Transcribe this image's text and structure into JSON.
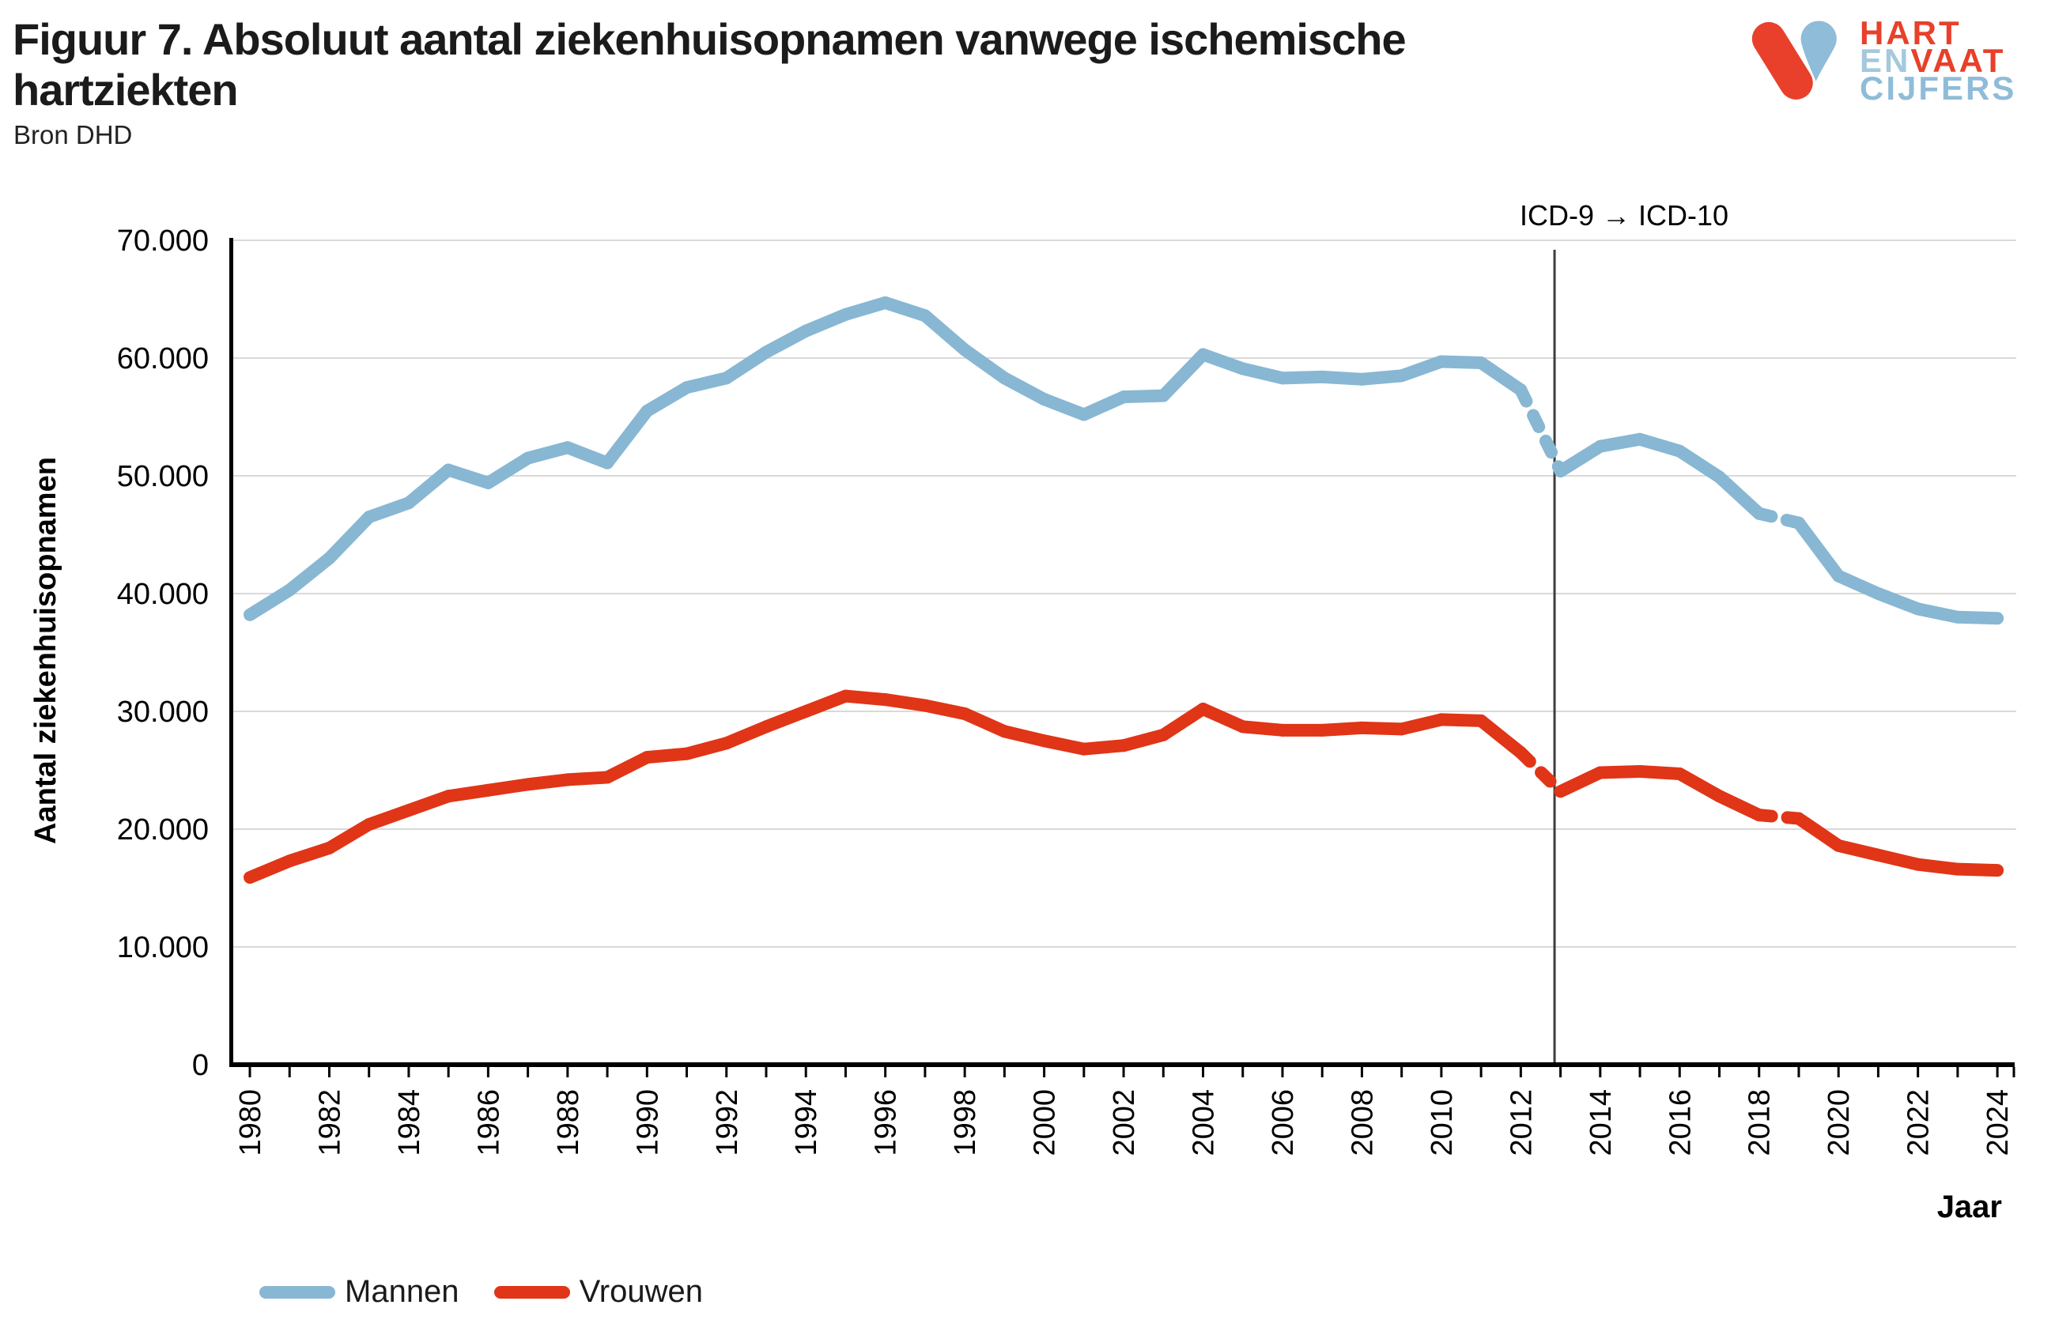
{
  "header": {
    "title": "Figuur 7. Absoluut aantal ziekenhuisopnamen vanwege ischemische hartziekten",
    "source": "Bron DHD"
  },
  "logo": {
    "line1": "HART",
    "line2a": "EN",
    "line2b": "VAAT",
    "line3": "CIJFERS",
    "red": "#E8402A",
    "blue": "#8FBCD8"
  },
  "chart_data": {
    "type": "line",
    "title": "Figuur 7. Absoluut aantal ziekenhuisopnamen vanwege ischemische hartziekten",
    "source": "Bron DHD",
    "xlabel": "Jaar",
    "ylabel": "Aantal ziekenhuisopnamen",
    "x": [
      1980,
      1981,
      1982,
      1983,
      1984,
      1985,
      1986,
      1987,
      1988,
      1989,
      1990,
      1991,
      1992,
      1993,
      1994,
      1995,
      1996,
      1997,
      1998,
      1999,
      2000,
      2001,
      2002,
      2003,
      2004,
      2005,
      2006,
      2007,
      2008,
      2009,
      2010,
      2011,
      2012,
      2013,
      2014,
      2015,
      2016,
      2017,
      2018,
      2019,
      2020,
      2021,
      2022,
      2023,
      2024
    ],
    "series": [
      {
        "name": "Mannen",
        "color": "#87B7D3",
        "values": [
          38200,
          40300,
          43000,
          46500,
          47700,
          50500,
          49400,
          51500,
          52400,
          51100,
          55500,
          57500,
          58300,
          60500,
          62300,
          63700,
          64700,
          63600,
          60700,
          58300,
          56500,
          55200,
          56700,
          56800,
          60300,
          59100,
          58300,
          58400,
          58200,
          58500,
          59700,
          59600,
          57300,
          50400,
          52500,
          53100,
          52100,
          49900,
          46800,
          46000,
          41500,
          40000,
          38700,
          38000,
          37900
        ]
      },
      {
        "name": "Vrouwen",
        "color": "#E03517",
        "values": [
          15900,
          17300,
          18400,
          20400,
          21600,
          22800,
          23300,
          23800,
          24200,
          24400,
          26100,
          26400,
          27300,
          28700,
          30000,
          31300,
          31000,
          30500,
          29800,
          28300,
          27500,
          26800,
          27100,
          28000,
          30200,
          28700,
          28400,
          28400,
          28600,
          28500,
          29300,
          29200,
          26500,
          23200,
          24800,
          24900,
          24700,
          22800,
          21200,
          20900,
          18600,
          17800,
          17000,
          16600,
          16500
        ]
      }
    ],
    "dashed_x_ranges": [
      [
        2012,
        2013
      ],
      [
        2018,
        2019
      ]
    ],
    "ylim": [
      0,
      70000
    ],
    "y_tick_values": [
      0,
      10000,
      20000,
      30000,
      40000,
      50000,
      60000,
      70000
    ],
    "y_tick_labels": [
      "0",
      "10.000",
      "20.000",
      "30.000",
      "40.000",
      "50.000",
      "60.000",
      "70.000"
    ],
    "x_label_step": 2,
    "grid": "horizontal",
    "legend_position": "bottom-left",
    "vline": {
      "x": 2012.85,
      "label": "ICD-9 → ICD-10"
    }
  }
}
